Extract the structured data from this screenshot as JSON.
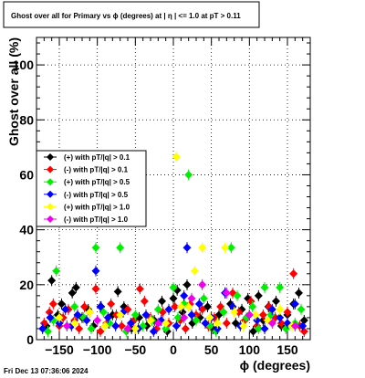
{
  "chart_data": {
    "type": "scatter",
    "title": "Ghost over all for Primary vs ϕ (degrees) at | η | <= 1.0 at pT > 0.11",
    "xlabel": "ϕ (degrees)",
    "ylabel": "Ghost over all (%)",
    "xlim": [
      -180,
      180
    ],
    "ylim": [
      0,
      110
    ],
    "x_ticks": [
      -150,
      -100,
      -50,
      0,
      50,
      100,
      150
    ],
    "y_ticks": [
      0,
      20,
      40,
      60,
      80,
      100
    ],
    "grid": true,
    "legend_position": "middle-left",
    "series": [
      {
        "name": "(+) with pT/|q| > 0.1",
        "color": "#000000",
        "x": [
          -167,
          -160,
          -152,
          -147,
          -133,
          -128,
          -120,
          -112,
          -105,
          -95,
          -85,
          -80,
          -73,
          -65,
          -55,
          -45,
          -35,
          -25,
          -15,
          -8,
          0,
          5,
          12,
          18,
          25,
          35,
          45,
          52,
          60,
          68,
          75,
          82,
          90,
          98,
          105,
          112,
          118,
          125,
          135,
          142,
          150,
          158,
          165,
          172
        ],
        "y": [
          5,
          21.5,
          9,
          13,
          17,
          19,
          8,
          11,
          5,
          12,
          6,
          9,
          17.5,
          12,
          4,
          8,
          5,
          7,
          14,
          3,
          15,
          18,
          10,
          20,
          6,
          8,
          12,
          4,
          9,
          17,
          13,
          6,
          11,
          15,
          3,
          16,
          7,
          12,
          14,
          5,
          9,
          13,
          17,
          7
        ]
      },
      {
        "name": "(-) with pT/|q| > 0.1",
        "color": "#ff0000",
        "x": [
          -170,
          -163,
          -158,
          -150,
          -145,
          -138,
          -130,
          -124,
          -117,
          -110,
          -102,
          -96,
          -88,
          -82,
          -75,
          -68,
          -60,
          -52,
          -44,
          -38,
          -30,
          -22,
          -14,
          -6,
          2,
          9,
          16,
          22,
          30,
          38,
          46,
          54,
          62,
          70,
          78,
          86,
          94,
          102,
          110,
          118,
          126,
          134,
          142,
          150,
          158,
          166,
          172
        ],
        "y": [
          6,
          10,
          13,
          5,
          8,
          11,
          7,
          4,
          12,
          10,
          18.5,
          3,
          6,
          13,
          9,
          5,
          11,
          7,
          18.5,
          14,
          8,
          4,
          10,
          6,
          12,
          7,
          4,
          13,
          9,
          11,
          5,
          8,
          12,
          6,
          17,
          10,
          7,
          14,
          5,
          9,
          12,
          8,
          6,
          10,
          24,
          5,
          3
        ]
      },
      {
        "name": "(+) with pT/|q| > 0.5",
        "color": "#00ee00",
        "x": [
          -165,
          -158,
          -154,
          -140,
          -130,
          -118,
          -108,
          -102,
          -92,
          -84,
          -70,
          -62,
          -50,
          -40,
          -28,
          -20,
          -10,
          0,
          6,
          14,
          20,
          30,
          40,
          48,
          56,
          66,
          76,
          84,
          96,
          104,
          112,
          120,
          128,
          140,
          148,
          160,
          168
        ],
        "y": [
          3,
          7,
          25,
          5,
          12,
          8,
          4,
          33.5,
          10,
          6,
          33.5,
          3,
          9,
          5,
          7,
          11,
          4,
          19,
          8,
          13,
          60,
          7,
          15,
          5,
          3,
          10,
          33.5,
          16,
          8,
          12,
          4,
          19,
          9,
          19,
          4,
          6,
          11
        ]
      },
      {
        "name": "(-) with pT/|q| > 0.5",
        "color": "#0000ff",
        "x": [
          -172,
          -162,
          -150,
          -142,
          -134,
          -126,
          -114,
          -102,
          -96,
          -86,
          -76,
          -66,
          -56,
          -46,
          -36,
          -26,
          -16,
          -6,
          4,
          14,
          18,
          24,
          34,
          42,
          50,
          58,
          68,
          78,
          88,
          100,
          110,
          120,
          130,
          140,
          150,
          160,
          170
        ],
        "y": [
          4,
          8,
          6,
          11,
          5,
          9,
          7,
          25,
          12,
          8,
          5,
          10,
          6,
          4,
          9,
          3,
          7,
          11,
          5,
          16,
          33.5,
          9,
          13,
          6,
          8,
          4,
          17,
          12,
          5,
          9,
          7,
          4,
          11,
          8,
          6,
          13,
          5
        ]
      },
      {
        "name": "(+) with pT/|q| > 1.0",
        "color": "#ffff00",
        "x": [
          -150,
          -130,
          -110,
          -90,
          -70,
          -50,
          -30,
          -10,
          4,
          10,
          20,
          28,
          38,
          48,
          58,
          68,
          80,
          92,
          108,
          124,
          140,
          156
        ],
        "y": [
          8,
          6,
          10,
          5,
          9,
          4,
          7,
          6,
          66.5,
          12,
          12,
          25,
          33.5,
          8,
          6,
          33.5,
          10,
          5,
          9,
          7,
          11,
          5
        ]
      },
      {
        "name": "(-) with pT/|q| > 1.0",
        "color": "#ee00ee",
        "x": [
          -140,
          -100,
          -60,
          -20,
          14,
          24,
          38,
          70,
          100,
          130,
          160
        ],
        "y": [
          5,
          7,
          4,
          6,
          8,
          15,
          20,
          17,
          9,
          6,
          5
        ]
      }
    ]
  },
  "footer": {
    "timestamp": "Fri Dec 13 07:36:06 2024"
  }
}
